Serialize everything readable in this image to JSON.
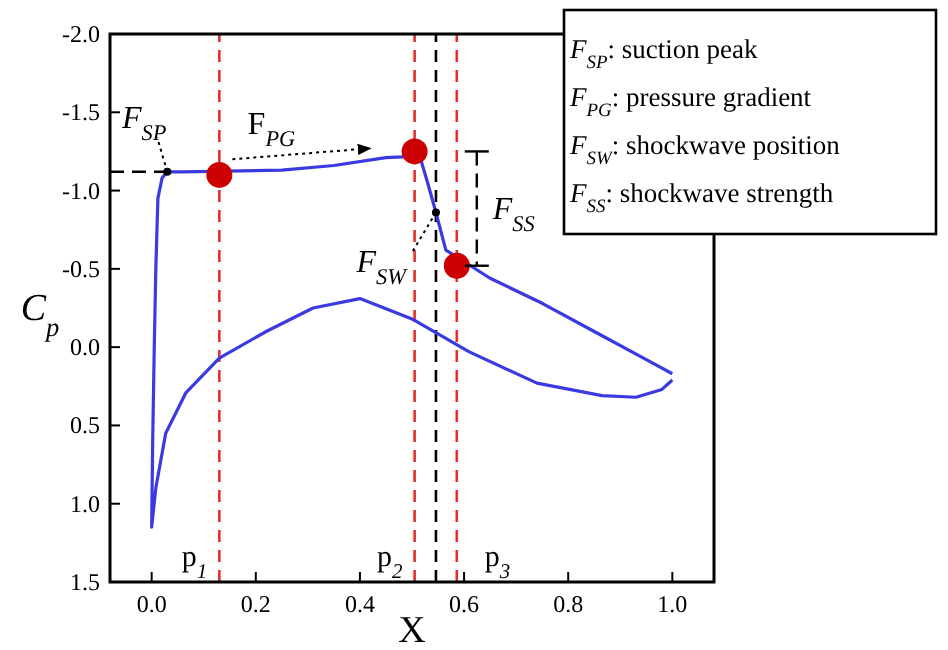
{
  "chart_data": {
    "type": "line",
    "xlabel": "X",
    "ylabel": "C$_{p}$",
    "xlim": [
      -0.08,
      1.08
    ],
    "ylim": [
      1.5,
      -2.0
    ],
    "xticks": [
      {
        "value": 0,
        "label": "0.0"
      },
      {
        "value": 0.2,
        "label": "0.2"
      },
      {
        "value": 0.4,
        "label": "0.4"
      },
      {
        "value": 0.6,
        "label": "0.6"
      },
      {
        "value": 0.8,
        "label": "0.8"
      },
      {
        "value": 1,
        "label": "1.0"
      }
    ],
    "yticks": [
      {
        "value": -2,
        "label": "-2.0"
      },
      {
        "value": -1.5,
        "label": "-1.5"
      },
      {
        "value": -1,
        "label": "-1.0"
      },
      {
        "value": -0.5,
        "label": "-0.5"
      },
      {
        "value": 0,
        "label": "0.0"
      },
      {
        "value": 0.5,
        "label": "0.5"
      },
      {
        "value": 1,
        "label": "1.0"
      },
      {
        "value": 1.5,
        "label": "1.5"
      }
    ],
    "grid": false,
    "series": [
      {
        "color": "#3a3ae0",
        "marker": "none",
        "line_style": "solid",
        "x": [
          1.0,
          0.98,
          0.93,
          0.865,
          0.74,
          0.61,
          0.5,
          0.4,
          0.31,
          0.22,
          0.13,
          0.066,
          0.027,
          0.008,
          0.0,
          0.002,
          0.005,
          0.008,
          0.012,
          0.02,
          0.03,
          0.06,
          0.25,
          0.35,
          0.45,
          0.515,
          0.53,
          0.546,
          0.565,
          0.65,
          0.75,
          0.85,
          0.95,
          1.0
        ],
        "values": [
          0.21,
          0.27,
          0.32,
          0.31,
          0.23,
          0.03,
          -0.18,
          -0.31,
          -0.25,
          -0.1,
          0.07,
          0.29,
          0.55,
          0.9,
          1.15,
          0.6,
          0.0,
          -0.5,
          -0.95,
          -1.08,
          -1.12,
          -1.12,
          -1.13,
          -1.16,
          -1.21,
          -1.22,
          -1.05,
          -0.86,
          -0.62,
          -0.44,
          -0.28,
          -0.1,
          0.08,
          0.17
        ]
      },
      {
        "type": "scatter",
        "color": "#cc0000",
        "marker": "circle",
        "x": [
          0.13,
          0.505,
          0.586
        ],
        "values": [
          -1.1,
          -1.25,
          -0.52
        ]
      }
    ],
    "ref_lines": [
      {
        "axis": "x",
        "value": 0.13,
        "label": "p$_{1}$",
        "color": "#e03030",
        "line_style": "dashed"
      },
      {
        "axis": "x",
        "value": 0.505,
        "label": "p$_{2}$",
        "color": "#e03030",
        "line_style": "dashed"
      },
      {
        "axis": "x",
        "value": 0.586,
        "label": "p$_{3}$",
        "color": "#e03030",
        "line_style": "dashed"
      },
      {
        "axis": "x",
        "value": 0.546,
        "color": "#000000",
        "line_style": "dashed"
      }
    ],
    "annotations": [
      {
        "text": "F$_{SP}$",
        "x": 0.03,
        "y": -1.12
      },
      "F$_{PG}$",
      {
        "text": "F$_{SW}$",
        "x": 0.546,
        "y": -0.86
      },
      "F$_{SS}$",
      "F$_{SP}$: suction peak",
      "F$_{PG}$: pressure gradient",
      "F$_{SW}$: shockwave position",
      "F$_{SS}$: shockwave strength"
    ]
  }
}
